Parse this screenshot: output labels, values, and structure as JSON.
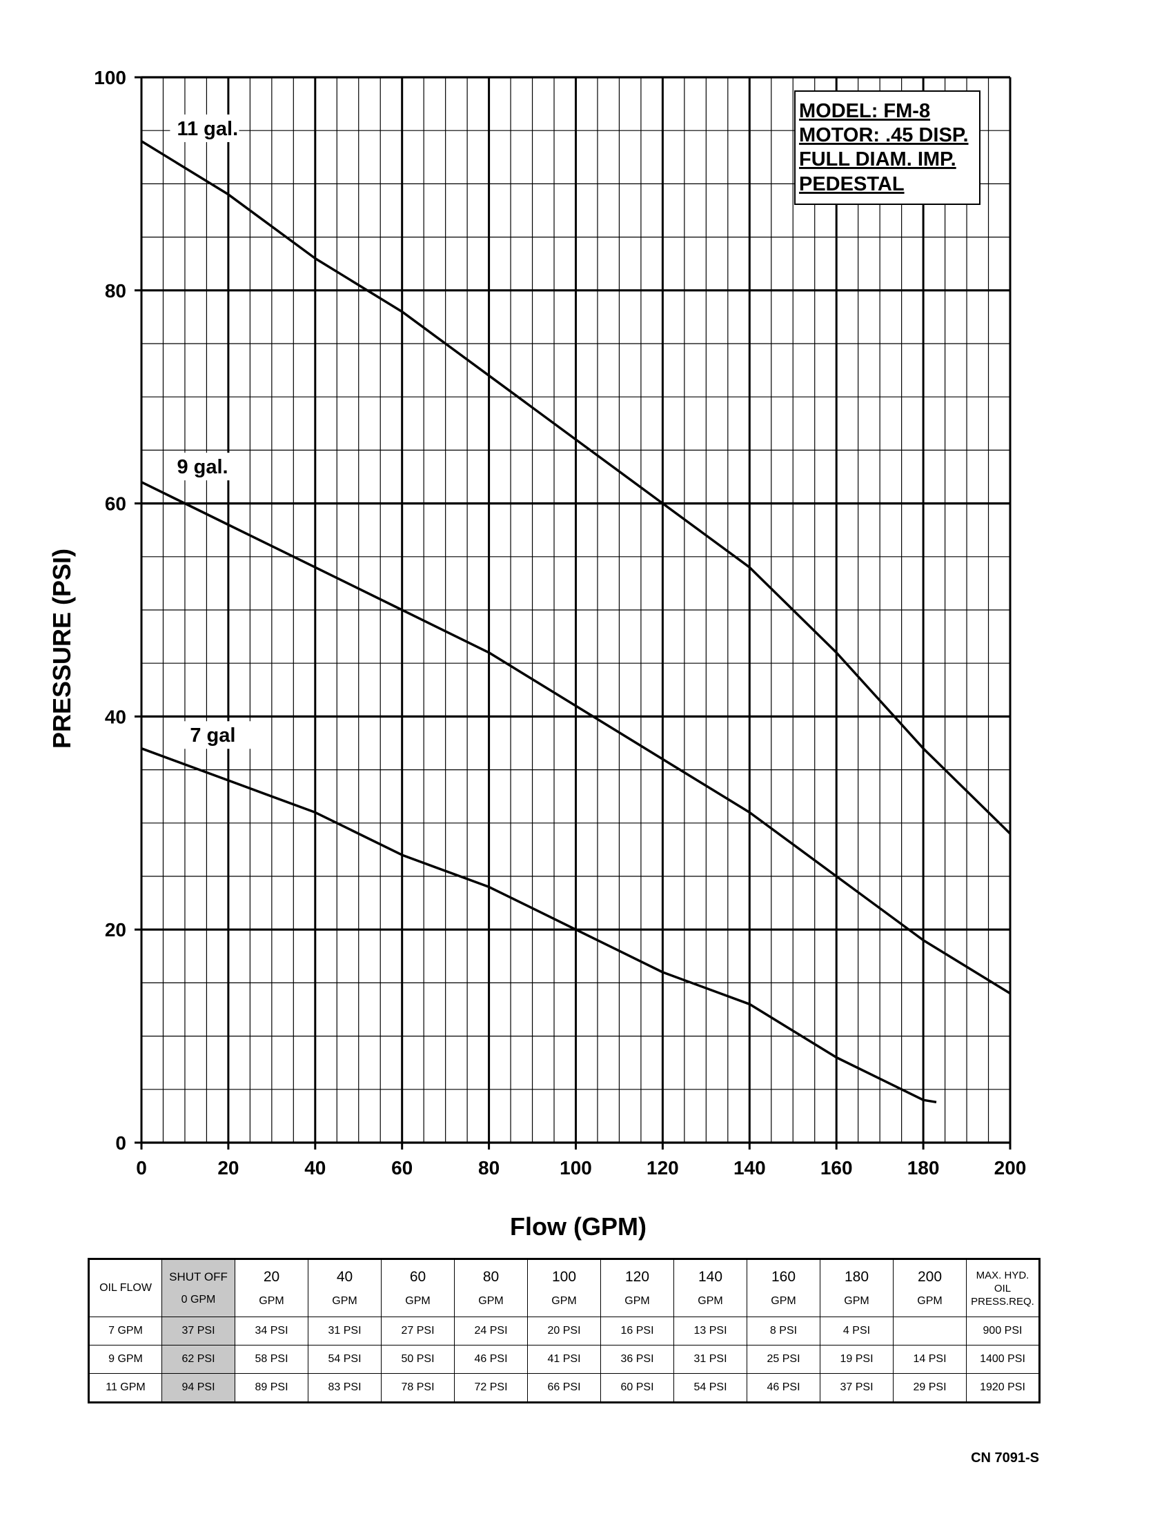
{
  "chart_data": {
    "type": "line",
    "title": "",
    "xlabel": "Flow (GPM)",
    "ylabel": "PRESSURE (PSI)",
    "xlim": [
      0,
      200
    ],
    "ylim": [
      0,
      100
    ],
    "grid": true,
    "x_ticks": [
      "0",
      "20",
      "40",
      "60",
      "80",
      "100",
      "120",
      "140",
      "160",
      "180",
      "200"
    ],
    "y_ticks": [
      "0",
      "20",
      "40",
      "60",
      "80",
      "100"
    ],
    "series": [
      {
        "name": "11 gal.",
        "x": [
          0,
          20,
          40,
          60,
          80,
          100,
          120,
          140,
          160,
          180,
          200
        ],
        "y": [
          94,
          89,
          83,
          78,
          72,
          66,
          60,
          54,
          46,
          37,
          29
        ]
      },
      {
        "name": "9 gal.",
        "x": [
          0,
          20,
          40,
          60,
          80,
          100,
          120,
          140,
          160,
          180,
          200
        ],
        "y": [
          62,
          58,
          54,
          50,
          46,
          41,
          36,
          31,
          25,
          19,
          14
        ]
      },
      {
        "name": "7 gal",
        "x": [
          0,
          20,
          40,
          60,
          80,
          100,
          120,
          140,
          160,
          180,
          183
        ],
        "y": [
          37,
          34,
          31,
          27,
          24,
          20,
          16,
          13,
          8,
          4,
          3.8
        ]
      }
    ],
    "info_box": [
      "MODEL: FM-8",
      "MOTOR: .45 DISP.",
      "FULL DIAM. IMP.",
      "PEDESTAL"
    ]
  },
  "table": {
    "row_header": "OIL FLOW",
    "columns": [
      {
        "value": "SHUT OFF",
        "unit": "0 GPM"
      },
      {
        "value": "20",
        "unit": "GPM"
      },
      {
        "value": "40",
        "unit": "GPM"
      },
      {
        "value": "60",
        "unit": "GPM"
      },
      {
        "value": "80",
        "unit": "GPM"
      },
      {
        "value": "100",
        "unit": "GPM"
      },
      {
        "value": "120",
        "unit": "GPM"
      },
      {
        "value": "140",
        "unit": "GPM"
      },
      {
        "value": "160",
        "unit": "GPM"
      },
      {
        "value": "180",
        "unit": "GPM"
      },
      {
        "value": "200",
        "unit": "GPM"
      }
    ],
    "last_header": "MAX. HYD. OIL PRESS.REQ.",
    "rows": [
      {
        "label": "7 GPM",
        "cells": [
          "37 PSI",
          "34 PSI",
          "31 PSI",
          "27 PSI",
          "24 PSI",
          "20 PSI",
          "16 PSI",
          "13 PSI",
          "8 PSI",
          "4 PSI",
          ""
        ],
        "max": "900 PSI"
      },
      {
        "label": "9 GPM",
        "cells": [
          "62 PSI",
          "58 PSI",
          "54 PSI",
          "50 PSI",
          "46 PSI",
          "41 PSI",
          "36 PSI",
          "31 PSI",
          "25 PSI",
          "19 PSI",
          "14 PSI"
        ],
        "max": "1400 PSI"
      },
      {
        "label": "11 GPM",
        "cells": [
          "94 PSI",
          "89 PSI",
          "83 PSI",
          "78 PSI",
          "72 PSI",
          "66 PSI",
          "60 PSI",
          "54 PSI",
          "46 PSI",
          "37 PSI",
          "29 PSI"
        ],
        "max": "1920 PSI"
      }
    ],
    "shaded_color": "#c8c8c8"
  },
  "doc_code": "CN 7091-S"
}
